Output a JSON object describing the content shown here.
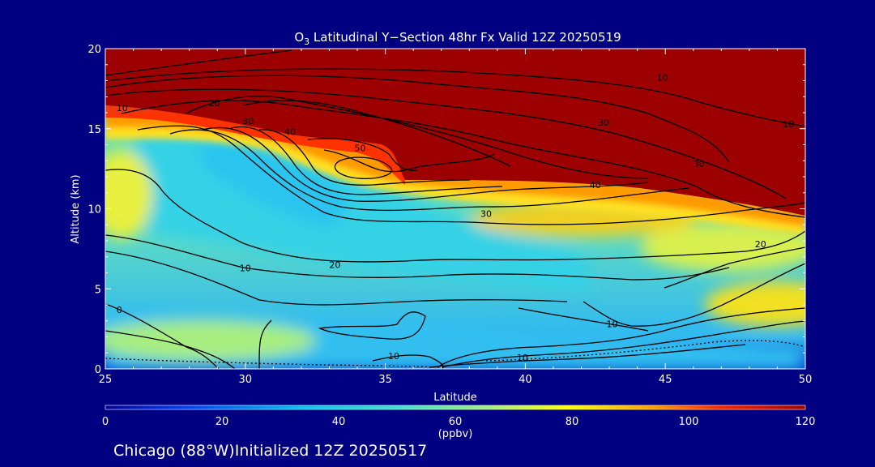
{
  "chart_data": {
    "type": "heatmap",
    "title_prefix": "O",
    "title_subscript": "3",
    "title_rest": " Latitudinal Y−Section 48hr  Fx Valid 12Z 20250519",
    "xlabel": "Latitude",
    "ylabel": "Altitude (km)",
    "xlim": [
      25,
      50
    ],
    "ylim": [
      0,
      20
    ],
    "x_ticks": [
      "25",
      "30",
      "35",
      "40",
      "45",
      "50"
    ],
    "y_ticks": [
      "0",
      "5",
      "10",
      "15",
      "20"
    ],
    "colorbar": {
      "unit": "(ppbv)",
      "range": [
        0,
        120
      ],
      "tick_labels": [
        "0",
        "20",
        "40",
        "60",
        "80",
        "100",
        "120"
      ],
      "colors": [
        "#0000a0",
        "#0040ff",
        "#00c0ff",
        "#40e0d0",
        "#a0f080",
        "#ffff00",
        "#ffa000",
        "#ff2000",
        "#a00000"
      ]
    },
    "contour_levels_labeled": [
      "0",
      "10",
      "20",
      "30",
      "40",
      "50"
    ],
    "contour_labels": [
      {
        "text": "10",
        "lat": 44.9,
        "alt": 18.2
      },
      {
        "text": "10",
        "lat": 25.6,
        "alt": 16.3
      },
      {
        "text": "20",
        "lat": 28.9,
        "alt": 16.6
      },
      {
        "text": "30",
        "lat": 30.1,
        "alt": 15.5
      },
      {
        "text": "40",
        "lat": 31.6,
        "alt": 14.8
      },
      {
        "text": "30",
        "lat": 42.8,
        "alt": 15.4
      },
      {
        "text": "10",
        "lat": 49.4,
        "alt": 15.3
      },
      {
        "text": "50",
        "lat": 34.1,
        "alt": 13.8
      },
      {
        "text": "30",
        "lat": 46.2,
        "alt": 12.8
      },
      {
        "text": "40",
        "lat": 42.5,
        "alt": 11.5
      },
      {
        "text": "30",
        "lat": 38.6,
        "alt": 9.7
      },
      {
        "text": "20",
        "lat": 48.4,
        "alt": 7.8
      },
      {
        "text": "20",
        "lat": 33.2,
        "alt": 6.5
      },
      {
        "text": "10",
        "lat": 30.0,
        "alt": 6.3
      },
      {
        "text": "0",
        "lat": 25.5,
        "alt": 3.7
      },
      {
        "text": "10",
        "lat": 43.1,
        "alt": 2.8
      },
      {
        "text": "10",
        "lat": 35.3,
        "alt": 0.8
      },
      {
        "text": "10",
        "lat": 39.9,
        "alt": 0.7
      }
    ],
    "footer": "Chicago (88°W)Initialized 12Z 20250517"
  }
}
